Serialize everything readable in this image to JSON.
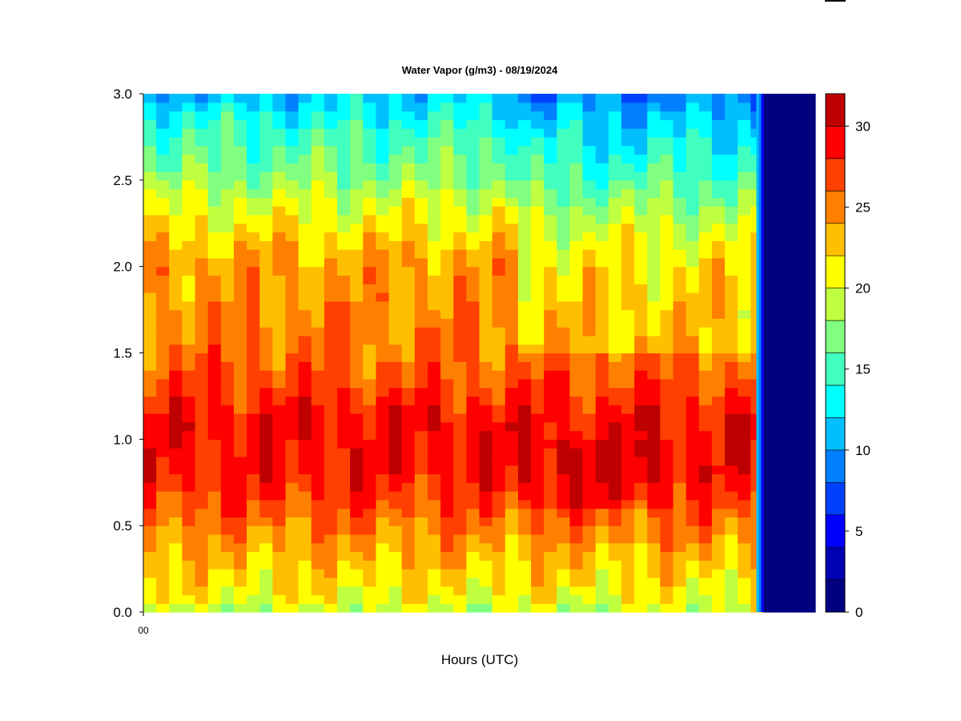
{
  "chart_data": {
    "type": "heatmap",
    "title": "Water Vapor (g/m3) - 08/19/2024",
    "xlabel": "Hours (UTC)",
    "ylabel": "",
    "x_tick_labels": [
      "00"
    ],
    "ylim": [
      0,
      3
    ],
    "y_ticks": [
      "0.0",
      "0.5",
      "1.0",
      "1.5",
      "2.0",
      "2.5",
      "3.0"
    ],
    "colorbar": {
      "range": [
        0,
        32
      ],
      "tick_labels": [
        "0",
        "5",
        "10",
        "15",
        "20",
        "25",
        "30"
      ],
      "levels": [
        0,
        2,
        4,
        6,
        8,
        10,
        12,
        14,
        16,
        18,
        20,
        22,
        24,
        26,
        28,
        30,
        32
      ],
      "colors": [
        "#000080",
        "#0000b4",
        "#0000ff",
        "#0040ff",
        "#0080ff",
        "#00bfff",
        "#00ffff",
        "#40ffbf",
        "#80ff80",
        "#bfff40",
        "#ffff00",
        "#ffbf00",
        "#ff8000",
        "#ff4000",
        "#ff0000",
        "#bf0000"
      ]
    },
    "height_profile": [
      {
        "height": 0.0,
        "value": 19
      },
      {
        "height": 0.1,
        "value": 21
      },
      {
        "height": 0.25,
        "value": 22.5
      },
      {
        "height": 0.4,
        "value": 24
      },
      {
        "height": 0.6,
        "value": 26.5
      },
      {
        "height": 0.8,
        "value": 28.5
      },
      {
        "height": 1.1,
        "value": 29
      },
      {
        "height": 1.3,
        "value": 27
      },
      {
        "height": 1.5,
        "value": 25.5
      },
      {
        "height": 1.8,
        "value": 24.5
      },
      {
        "height": 2.0,
        "value": 24
      },
      {
        "height": 2.15,
        "value": 22.5
      },
      {
        "height": 2.35,
        "value": 20
      },
      {
        "height": 2.55,
        "value": 17
      },
      {
        "height": 2.75,
        "value": 15
      },
      {
        "height": 2.9,
        "value": 13
      },
      {
        "height": 3.0,
        "value": 11
      }
    ],
    "missing_data_fraction_start": 0.93
  }
}
